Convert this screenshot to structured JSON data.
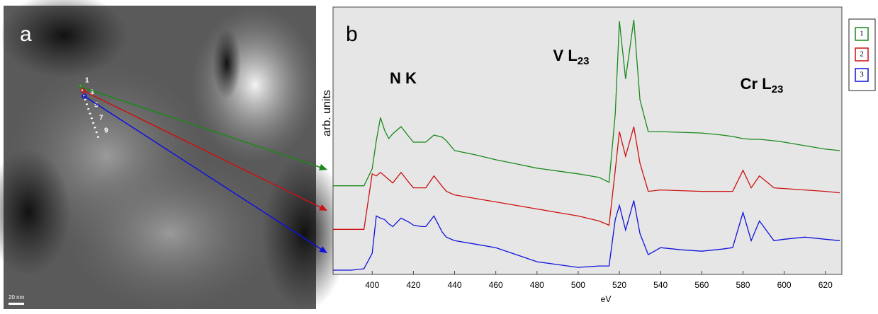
{
  "image": {
    "label": "a",
    "points": [
      "1",
      "3",
      "5",
      "7",
      "9"
    ],
    "scale": "20 nm"
  },
  "chart_data": {
    "type": "line",
    "panel_label": "b",
    "xlabel": "eV",
    "ylabel": "arb. units",
    "annotations": [
      {
        "text": "N K"
      },
      {
        "text": "V L",
        "sub": "23"
      },
      {
        "text": "Cr L",
        "sub": "23"
      }
    ],
    "x": [
      381,
      390,
      396,
      400,
      402,
      404,
      406,
      408,
      410,
      414,
      418,
      420,
      424,
      426,
      430,
      434,
      436,
      440,
      450,
      460,
      470,
      480,
      490,
      500,
      510,
      515,
      518,
      520,
      523,
      527,
      530,
      534,
      540,
      550,
      560,
      570,
      575,
      580,
      584,
      588,
      595,
      600,
      610,
      620,
      627
    ],
    "series": [
      {
        "name": "1",
        "color": "#1a8a1a",
        "values": [
          126,
          126,
          126,
          150,
          190,
          223,
          205,
          193,
          200,
          210,
          195,
          188,
          188,
          188,
          198,
          195,
          190,
          176,
          170,
          163,
          157,
          151,
          147,
          143,
          138,
          131,
          228,
          360,
          278,
          362,
          248,
          203,
          203,
          202,
          201,
          198,
          196,
          193,
          192,
          192,
          190,
          188,
          183,
          178,
          176
        ]
      },
      {
        "name": "2",
        "color": "#cc1111",
        "values": [
          64,
          64,
          64,
          143,
          140,
          145,
          140,
          135,
          130,
          145,
          130,
          123,
          123,
          123,
          140,
          125,
          118,
          113,
          108,
          103,
          98,
          93,
          88,
          83,
          76,
          70,
          148,
          203,
          168,
          210,
          158,
          118,
          120,
          119,
          118,
          118,
          118,
          148,
          123,
          140,
          123,
          122,
          120,
          118,
          116
        ]
      },
      {
        "name": "3",
        "color": "#1111dd",
        "values": [
          6,
          6,
          8,
          30,
          83,
          80,
          78,
          72,
          68,
          80,
          74,
          70,
          68,
          68,
          83,
          60,
          53,
          48,
          43,
          38,
          28,
          18,
          14,
          10,
          12,
          12,
          78,
          98,
          63,
          105,
          58,
          28,
          38,
          35,
          33,
          36,
          38,
          88,
          48,
          76,
          48,
          50,
          53,
          50,
          48
        ]
      }
    ],
    "xlim": [
      381,
      628
    ],
    "xticks": [
      400,
      420,
      440,
      460,
      480,
      500,
      520,
      540,
      560,
      580,
      600,
      620
    ],
    "ylim": [
      0,
      380
    ]
  }
}
